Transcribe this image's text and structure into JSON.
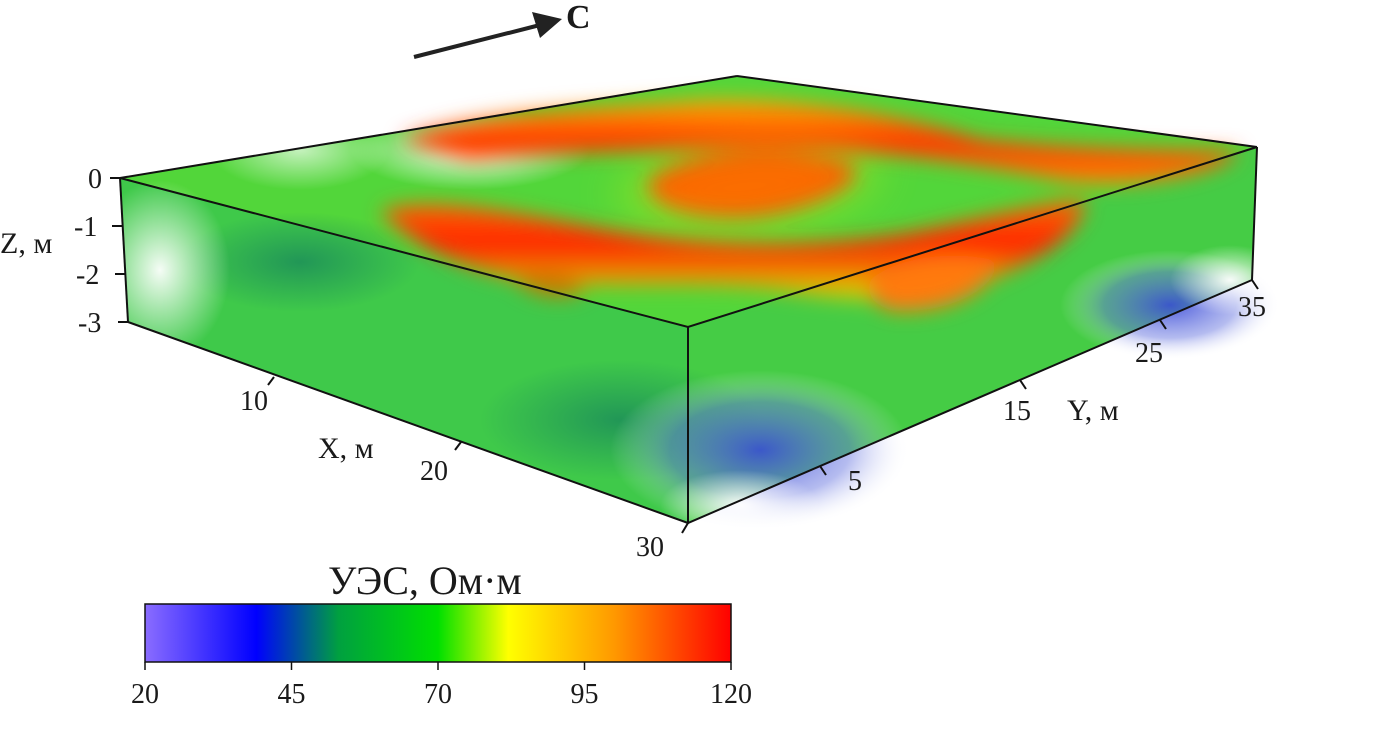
{
  "chart_data": {
    "type": "heatmap",
    "north_label": "С",
    "axes": {
      "x": {
        "label": "X, м",
        "ticks": [
          "10",
          "20",
          "30"
        ]
      },
      "y": {
        "label": "Y, м",
        "ticks": [
          "5",
          "15",
          "25",
          "35"
        ]
      },
      "z": {
        "label": "Z, м",
        "ticks": [
          "0",
          "-1",
          "-2",
          "-3"
        ]
      }
    },
    "colorbar": {
      "title": "УЭС, Ом·м",
      "min": 20,
      "max": 120,
      "tick_values": [
        "20",
        "45",
        "70",
        "95",
        "120"
      ],
      "colors": [
        "#8a6cff",
        "#0000ff",
        "#00a040",
        "#00e000",
        "#ffff00",
        "#ff9900",
        "#ff0000"
      ]
    }
  }
}
